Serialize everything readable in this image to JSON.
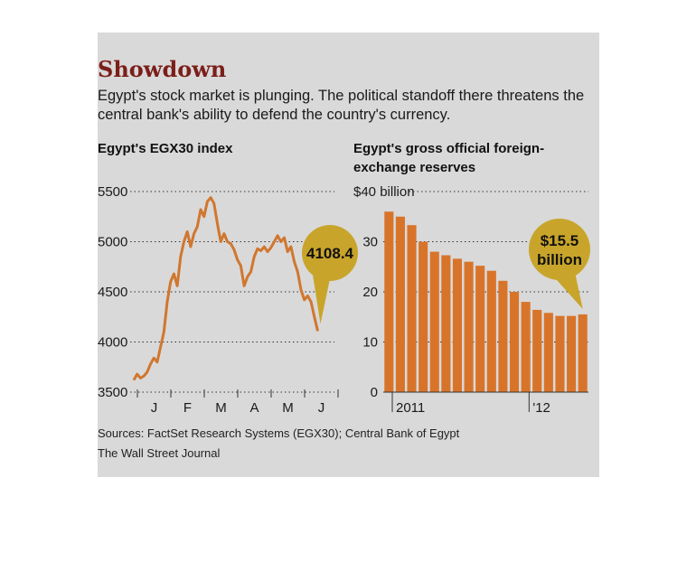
{
  "headline": "Showdown",
  "subhead": "Egypt's stock market is plunging. The political standoff there threatens the central bank's ability to defend the country's currency.",
  "sources": "Sources: FactSet Research Systems (EGX30); Central Bank of Egypt",
  "credit": "The Wall Street Journal",
  "colors": {
    "line": "#d0772f",
    "bar": "#d8742a",
    "callout": "#c8a52a",
    "headline": "#7b1f1a"
  },
  "chart_data": [
    {
      "type": "line",
      "title": "Egypt's EGX30 index",
      "yticks": [
        5500,
        5000,
        4500,
        4000,
        3500
      ],
      "ylim": [
        3500,
        5500
      ],
      "xlabels": [
        "J",
        "F",
        "M",
        "A",
        "M",
        "J"
      ],
      "x_range": [
        0,
        6
      ],
      "grid": true,
      "series": [
        {
          "x": [
            0.0,
            0.1,
            0.2,
            0.3,
            0.4,
            0.5,
            0.6,
            0.7,
            0.8,
            0.9,
            1.0,
            1.1,
            1.2,
            1.3,
            1.4,
            1.5,
            1.6,
            1.7,
            1.8,
            1.9,
            2.0,
            2.1,
            2.2,
            2.3,
            2.4,
            2.5,
            2.6,
            2.7,
            2.8,
            2.9,
            3.0,
            3.1,
            3.2,
            3.3,
            3.4,
            3.5,
            3.6,
            3.7,
            3.8,
            3.9,
            4.0,
            4.1,
            4.2,
            4.3,
            4.4,
            4.5,
            4.6,
            4.7,
            4.8,
            4.9,
            5.0,
            5.1,
            5.2,
            5.3,
            5.4,
            5.5
          ],
          "y": [
            3620,
            3680,
            3640,
            3660,
            3700,
            3780,
            3840,
            3800,
            3950,
            4100,
            4400,
            4600,
            4680,
            4560,
            4850,
            5000,
            5100,
            4950,
            5080,
            5150,
            5320,
            5250,
            5400,
            5440,
            5380,
            5180,
            5000,
            5080,
            5000,
            4980,
            4920,
            4820,
            4760,
            4560,
            4650,
            4700,
            4850,
            4930,
            4910,
            4950,
            4900,
            4940,
            5000,
            5060,
            5000,
            5040,
            4900,
            4950,
            4800,
            4700,
            4520,
            4420,
            4460,
            4400,
            4250,
            4108.4
          ]
        }
      ],
      "annotation": "4108.4"
    },
    {
      "type": "bar",
      "title": "Egypt's gross official foreign-exchange reserves",
      "yticks": [
        "$40 billion",
        "30",
        "20",
        "10",
        "0"
      ],
      "ylim": [
        0,
        40
      ],
      "xlabels": [
        "2011",
        "'12"
      ],
      "values": [
        36.0,
        35.0,
        33.3,
        30.0,
        28.0,
        27.3,
        26.6,
        26.0,
        25.2,
        24.2,
        22.2,
        20.0,
        18.0,
        16.4,
        15.8,
        15.2,
        15.2,
        15.5
      ],
      "grid": true,
      "annotation_value": "$15.5",
      "annotation_unit": "billion"
    }
  ]
}
